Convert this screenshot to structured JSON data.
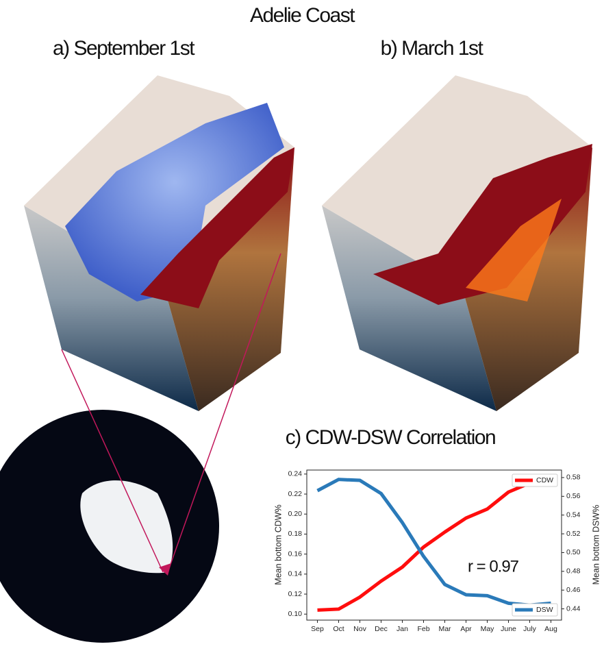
{
  "title": "Adelie Coast",
  "panels": [
    "a) September 1st",
    "b) March 1st"
  ],
  "chart_data": {
    "type": "line",
    "title": "c) CDW-DSW Correlation",
    "categories": [
      "Sep",
      "Oct",
      "Nov",
      "Dec",
      "Jan",
      "Feb",
      "Mar",
      "Apr",
      "May",
      "June",
      "July",
      "Aug"
    ],
    "series": [
      {
        "name": "CDW",
        "color": "#ff0d0d",
        "legend": "upper right",
        "values": [
          0.104,
          0.105,
          0.117,
          0.133,
          0.147,
          0.167,
          0.182,
          0.196,
          0.205,
          0.222,
          0.231,
          0.237
        ]
      },
      {
        "name": "DSW",
        "color": "#2a7ab9",
        "axis": "y2",
        "legend": "lower right",
        "values": [
          0.566,
          0.578,
          0.577,
          0.563,
          0.532,
          0.496,
          0.466,
          0.455,
          0.454,
          0.446,
          0.444,
          0.446
        ]
      }
    ],
    "ylabel": "Mean bottom CDW%",
    "y2label": "Mean bottom DSW%",
    "ylim": [
      0.094,
      0.244
    ],
    "yticks": [
      {
        "value": 0.1,
        "label": "0.10"
      },
      0.12,
      0.14,
      0.16,
      0.18,
      {
        "value": 0.2,
        "label": "0.20"
      },
      0.22,
      0.24
    ],
    "y2lim": [
      0.428,
      0.588
    ],
    "y2ticks": [
      0.44,
      0.46,
      0.48,
      {
        "value": 0.5,
        "label": "0.50"
      },
      0.52,
      0.54,
      0.56,
      0.58
    ],
    "annotation": "r = 0.97"
  }
}
